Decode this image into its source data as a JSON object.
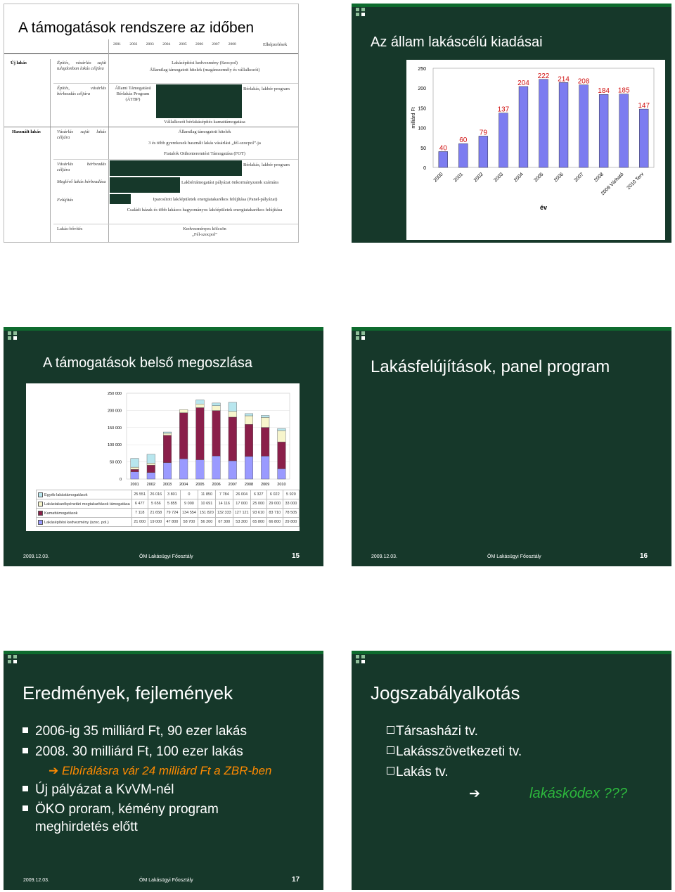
{
  "slide1": {
    "title": "A támogatások rendszere az időben",
    "years": [
      "2001",
      "2002",
      "2003",
      "2004",
      "2005",
      "2006",
      "2007",
      "2008"
    ],
    "elkepzelesek": "Elképzelések",
    "cat_new": "Új lakás",
    "cat_used": "Használt lakás",
    "r1_label": "Építés, vásárlás saját tulajdonban lakás céljára",
    "r1_text1": "Lakásépítési kedvezmény (Szocpol)",
    "r1_text2": "Államilag támogatott hitelek (magánszemély és vállalkozói)",
    "r2_label": "Építés, vásárlás bérbeadás céljára",
    "r2_atbp": "Állami Támogatású Bérlakás Program (ÁTBP)",
    "r2_berlakas": "Bérlakás, lakbér program",
    "r2_vallalkozoi": "Vállalkozói bérlakásépítés kamattámogatása",
    "r3_label": "Vásárlás saját lakás céljára",
    "r3_text1": "Államilag támogatott hitelek",
    "r3_text2": "3 és több gyerekesek használt lakás vásárlási „fél-szocpol”-ja",
    "r3_text3": "Fiatalok Otthonteremtési Támogatása (FOT)",
    "r4_label": "Vásárlás bérbeadás céljára",
    "r4_text": "Bérlakás, lakbér program",
    "r5_label": "Meglévő lakás bérbeadása",
    "r5_text": "Lakbértámogatási pályázat önkormányzatok számára",
    "r6_label": "Felújítás",
    "r6_text1": "Iparosított lakóépületek energiatakarékos felújítása (Panel-pályázat)",
    "r6_text2": "Családi házak és több lakásos hagyományos lakóépületek energiatakarékos felújítása",
    "r7_label": "Lakás-bővítés",
    "r7_text": "Kedvezményes kölcsön „Fél-szocpol”"
  },
  "slide2": {
    "title": "Az állam lakáscélú kiadásai",
    "chart_data": {
      "type": "bar",
      "categories": [
        "2000",
        "2001",
        "2002",
        "2003",
        "2004",
        "2005",
        "2006",
        "2007",
        "2008",
        "2009 Várható",
        "2010 Terv"
      ],
      "values": [
        40,
        60,
        79,
        137,
        204,
        222,
        214,
        208,
        184,
        185,
        147
      ],
      "ylabel": "milliárd Ft",
      "xlabel": "év",
      "ylim": [
        0,
        250
      ],
      "yticks": [
        "0",
        "50",
        "100",
        "150",
        "200",
        "250"
      ],
      "bar_color": "#7c7cf0",
      "label_color": "#d01010"
    }
  },
  "slide3": {
    "title": "A támogatások belső megoszlása",
    "chart_data": {
      "type": "bar",
      "stacked": true,
      "categories": [
        "2001",
        "2002",
        "2003",
        "2004",
        "2005",
        "2006",
        "2007",
        "2008",
        "2009",
        "2010"
      ],
      "yticks": [
        "0",
        "50 000",
        "100 000",
        "150 000",
        "200 000",
        "250 000"
      ],
      "ylim": [
        0,
        250000
      ],
      "series": [
        {
          "name": "Lakásépítési kedvezmény (szoc. pol.)",
          "color": "#9a9aff",
          "values": [
            21000,
            19000,
            47800,
            58700,
            56200,
            67300,
            53300,
            65800,
            66800,
            29800
          ],
          "labels": [
            "21 000",
            "19 000",
            "47 800",
            "58 700",
            "56 200",
            "67 300",
            "53 300",
            "65 800",
            "66 800",
            "29 800"
          ]
        },
        {
          "name": "Kamattámogatások",
          "color": "#8a1f4a",
          "values": [
            7118,
            21658,
            79724,
            134554,
            151820,
            132333,
            127121,
            93610,
            83710,
            78505
          ],
          "labels": [
            "7 118",
            "21 658",
            "79 724",
            "134 554",
            "151 820",
            "132 333",
            "127 121",
            "93 610",
            "83 710",
            "78 505"
          ]
        },
        {
          "name": "Lakástakarékpénztári megtakarítások támogatása",
          "color": "#f7f5cc",
          "values": [
            6477,
            5656,
            5855,
            9000,
            10691,
            14116,
            17000,
            25000,
            29000,
            33000
          ],
          "labels": [
            "6 477",
            "5 656",
            "5 855",
            "9 000",
            "10 691",
            "14 116",
            "17 000",
            "25 000",
            "29 000",
            "33 000"
          ]
        },
        {
          "name": "Egyéb lakástámogatások",
          "color": "#b8e6ee",
          "values": [
            25551,
            26016,
            3801,
            0,
            11850,
            7784,
            26004,
            6327,
            6022,
            5920
          ],
          "labels": [
            "25 551",
            "26 016",
            "3 801",
            "0",
            "11 850",
            "7 784",
            "26 004",
            "6 327",
            "6 022",
            "5 920"
          ]
        }
      ]
    },
    "footer_date": "2009.12.03.",
    "footer_org": "ÖM Lakásügyi Főosztály",
    "page": "15"
  },
  "slide4": {
    "title": "Lakásfelújítások, panel program",
    "footer_date": "2009.12.03.",
    "footer_org": "ÖM Lakásügyi Főosztály",
    "page": "16"
  },
  "slide5": {
    "title": "Eredmények, fejlemények",
    "b1": "2006-ig 35 milliárd Ft, 90 ezer lakás",
    "b2": "2008. 30 milliárd Ft, 100 ezer lakás",
    "b2_sub": "Elbírálásra vár 24 milliárd Ft a ZBR-ben",
    "b3": "Új pályázat a KvVM-nél",
    "b4a": "ÖKO proram, kémény program",
    "b4b": "meghirdetés előtt",
    "footer_date": "2009.12.03.",
    "footer_org": "ÖM Lakásügyi Főosztály",
    "page": "17"
  },
  "slide6": {
    "title": "Jogszabályalkotás",
    "b1": "Társasházi tv.",
    "b2": "Lakásszövetkezeti tv.",
    "b3": "Lakás tv.",
    "highlight": "lakáskódex ???",
    "highlight_color": "#2db83d"
  }
}
